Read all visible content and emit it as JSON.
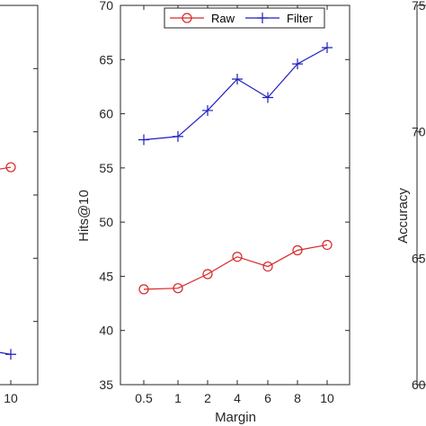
{
  "chart_data": [
    {
      "type": "line",
      "panel": "left",
      "xlabel": "",
      "ylabel": "",
      "categories": [
        "10"
      ],
      "series": [
        {
          "values": [
            68.6
          ],
          "marker": "circle",
          "color": "#d62728"
        },
        {
          "values": [
            61.2
          ],
          "marker": "plus",
          "color": "#1f1fbf"
        }
      ]
    },
    {
      "type": "line",
      "panel": "center",
      "title": "",
      "xlabel": "Margin",
      "ylabel": "Hits@10",
      "categories": [
        "0.5",
        "1",
        "2",
        "4",
        "6",
        "8",
        "10"
      ],
      "ylim": [
        35,
        70
      ],
      "yticks": [
        35,
        40,
        45,
        50,
        55,
        60,
        65,
        70
      ],
      "grid": false,
      "legend": "top-right",
      "series": [
        {
          "name": "Raw",
          "values": [
            43.8,
            43.9,
            45.2,
            46.8,
            45.9,
            47.4,
            47.9
          ],
          "marker": "circle",
          "color": "#d62728"
        },
        {
          "name": "Filter",
          "values": [
            57.6,
            57.9,
            60.3,
            63.2,
            61.5,
            64.6,
            66.1
          ],
          "marker": "plus",
          "color": "#1f1fbf"
        }
      ]
    },
    {
      "type": "line",
      "panel": "right",
      "xlabel": "",
      "ylabel": "Accuracy",
      "ylim": [
        60,
        75
      ],
      "yticks": [
        60,
        65,
        70,
        75
      ],
      "series": []
    }
  ]
}
